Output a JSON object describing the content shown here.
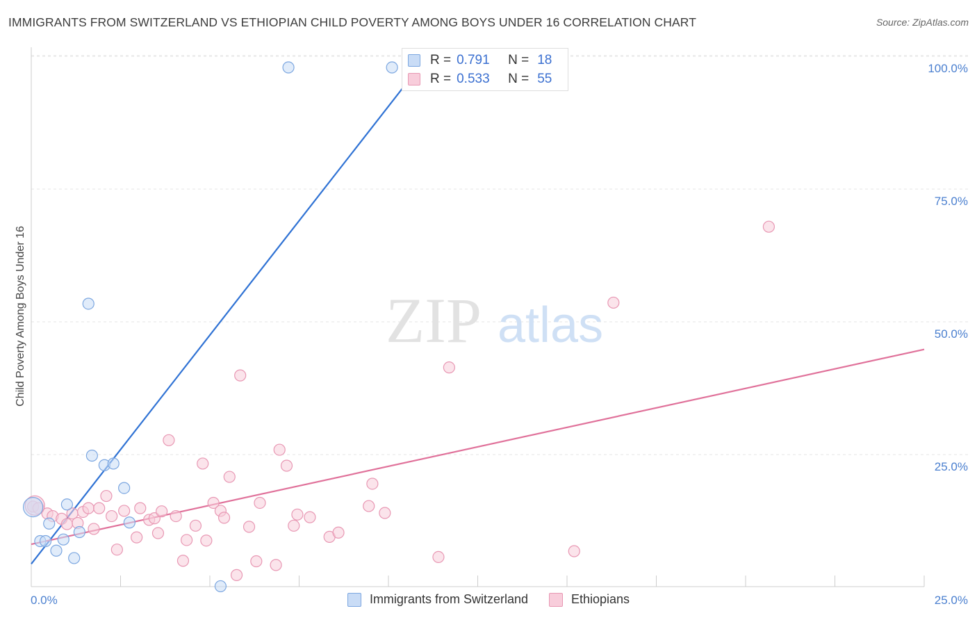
{
  "header": {
    "title": "IMMIGRANTS FROM SWITZERLAND VS ETHIOPIAN CHILD POVERTY AMONG BOYS UNDER 16 CORRELATION CHART",
    "source": "Source: ZipAtlas.com"
  },
  "watermark": {
    "zip": "ZIP",
    "atlas": "atlas"
  },
  "legend": {
    "rows": [
      {
        "r_label": "R =",
        "r_value": "0.791",
        "n_label": "N =",
        "n_value": "18"
      },
      {
        "r_label": "R =",
        "r_value": "0.533",
        "n_label": "N =",
        "n_value": "55"
      }
    ]
  },
  "colors": {
    "blue_fill": "#c9dcf6",
    "blue_stroke": "#7ba6e0",
    "blue_line": "#2f72d4",
    "pink_fill": "#f8cddb",
    "pink_stroke": "#e897b3",
    "pink_line": "#e0719a",
    "tick_text": "#4a7fcf"
  },
  "chart_data": {
    "type": "scatter",
    "title": "IMMIGRANTS FROM SWITZERLAND VS ETHIOPIAN CHILD POVERTY AMONG BOYS UNDER 16 CORRELATION CHART",
    "xlabel": "",
    "ylabel": "Child Poverty Among Boys Under 16",
    "xlim": [
      0,
      25
    ],
    "ylim": [
      0,
      105
    ],
    "x_tick_labels": [
      "0.0%",
      "25.0%"
    ],
    "y_ticks": [
      25,
      50,
      75,
      100
    ],
    "y_tick_labels": [
      "25.0%",
      "50.0%",
      "75.0%",
      "100.0%"
    ],
    "grid": true,
    "legend_position": "top-center",
    "series": [
      {
        "name": "Immigrants from Switzerland",
        "points": [
          [
            0.05,
            17.2
          ],
          [
            0.25,
            10.8
          ],
          [
            0.4,
            10.8
          ],
          [
            0.5,
            14.1
          ],
          [
            0.7,
            9.0
          ],
          [
            0.9,
            11.1
          ],
          [
            1.0,
            17.7
          ],
          [
            1.2,
            7.6
          ],
          [
            1.35,
            12.5
          ],
          [
            1.6,
            55.5
          ],
          [
            1.7,
            26.9
          ],
          [
            2.05,
            25.1
          ],
          [
            2.3,
            25.4
          ],
          [
            2.6,
            20.8
          ],
          [
            2.75,
            14.3
          ],
          [
            5.3,
            2.3
          ],
          [
            7.2,
            100.0
          ],
          [
            10.1,
            100.0
          ]
        ],
        "trend": {
          "x": [
            0.0,
            10.85
          ],
          "y": [
            6.5,
            100.0
          ]
        }
      },
      {
        "name": "Ethiopians",
        "points": [
          [
            0.05,
            17.3
          ],
          [
            0.2,
            17.0
          ],
          [
            0.45,
            16.0
          ],
          [
            0.6,
            15.5
          ],
          [
            0.85,
            15.0
          ],
          [
            1.0,
            14.0
          ],
          [
            1.15,
            16.0
          ],
          [
            1.3,
            14.2
          ],
          [
            1.45,
            16.3
          ],
          [
            1.6,
            17.0
          ],
          [
            1.75,
            13.1
          ],
          [
            1.9,
            17.0
          ],
          [
            2.1,
            19.3
          ],
          [
            2.25,
            15.5
          ],
          [
            2.4,
            9.2
          ],
          [
            2.6,
            16.5
          ],
          [
            2.95,
            11.5
          ],
          [
            3.05,
            17.0
          ],
          [
            3.3,
            14.8
          ],
          [
            3.45,
            15.1
          ],
          [
            3.55,
            12.3
          ],
          [
            3.65,
            16.4
          ],
          [
            3.85,
            29.8
          ],
          [
            4.05,
            15.5
          ],
          [
            4.25,
            7.1
          ],
          [
            4.35,
            11.0
          ],
          [
            4.6,
            13.7
          ],
          [
            4.8,
            25.4
          ],
          [
            4.9,
            10.9
          ],
          [
            5.1,
            18.0
          ],
          [
            5.3,
            16.5
          ],
          [
            5.4,
            15.2
          ],
          [
            5.55,
            22.9
          ],
          [
            5.75,
            4.4
          ],
          [
            5.85,
            42.0
          ],
          [
            6.1,
            13.5
          ],
          [
            6.3,
            7.0
          ],
          [
            6.4,
            18.0
          ],
          [
            6.85,
            6.3
          ],
          [
            6.95,
            28.0
          ],
          [
            7.15,
            25.0
          ],
          [
            7.35,
            13.7
          ],
          [
            7.45,
            15.8
          ],
          [
            7.8,
            15.3
          ],
          [
            8.35,
            11.6
          ],
          [
            8.6,
            12.4
          ],
          [
            9.45,
            17.4
          ],
          [
            9.55,
            21.6
          ],
          [
            9.9,
            16.1
          ],
          [
            11.4,
            7.8
          ],
          [
            11.7,
            43.5
          ],
          [
            15.2,
            8.9
          ],
          [
            16.3,
            55.7
          ],
          [
            20.65,
            70.0
          ],
          [
            0.1,
            17.5
          ]
        ],
        "trend": {
          "x": [
            0.0,
            25.0
          ],
          "y": [
            10.2,
            46.9
          ]
        }
      }
    ]
  },
  "bottom_legend": {
    "items": [
      {
        "label": "Immigrants from Switzerland"
      },
      {
        "label": "Ethiopians"
      }
    ]
  }
}
